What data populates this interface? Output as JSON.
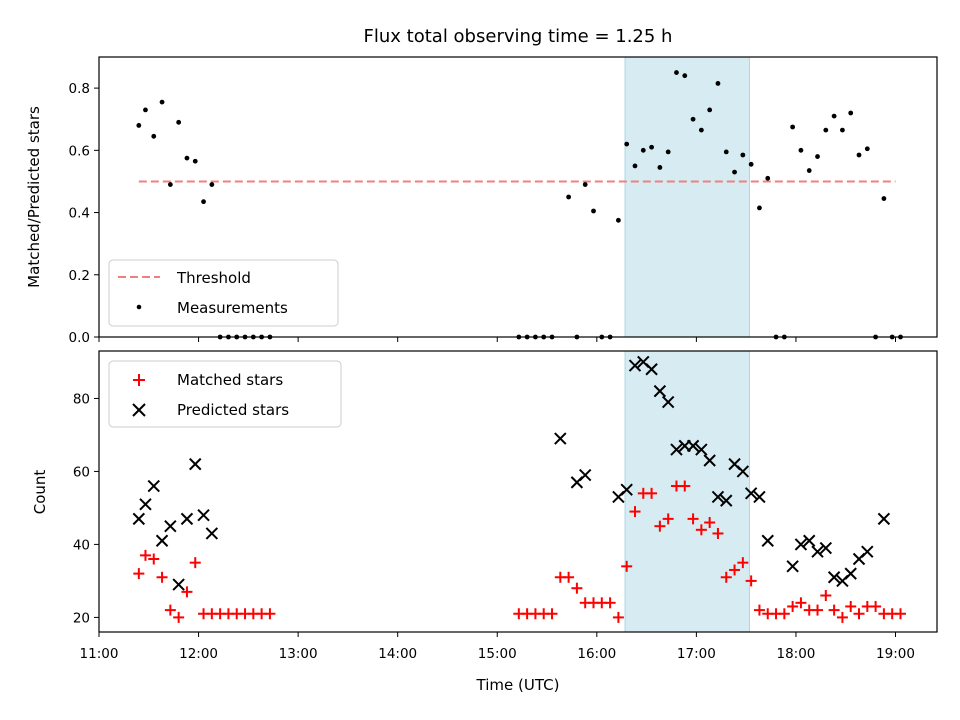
{
  "chart_data": [
    {
      "type": "scatter",
      "title": "Flux total observing time = 1.25 h",
      "xlabel": "",
      "ylabel": "Matched/Predicted stars",
      "xlim": [
        "11:00",
        "19:25"
      ],
      "ylim": [
        0,
        0.9
      ],
      "yticks": [
        "0.0",
        "0.2",
        "0.4",
        "0.6",
        "0.8"
      ],
      "highlight_span": [
        "16:17",
        "17:32"
      ],
      "legend_position": "lower-left",
      "threshold": {
        "name": "Threshold",
        "y": 0.5,
        "x_start": "11:24",
        "x_end": "19:00",
        "color": "#f08080"
      },
      "series": [
        {
          "name": "Measurements",
          "color": "#000000",
          "points": [
            [
              "11:24",
              0.68
            ],
            [
              "11:28",
              0.73
            ],
            [
              "11:33",
              0.645
            ],
            [
              "11:38",
              0.755
            ],
            [
              "11:43",
              0.49
            ],
            [
              "11:48",
              0.69
            ],
            [
              "11:53",
              0.575
            ],
            [
              "11:58",
              0.565
            ],
            [
              "12:03",
              0.435
            ],
            [
              "12:08",
              0.49
            ],
            [
              "12:13",
              0.0
            ],
            [
              "12:18",
              0.0
            ],
            [
              "12:23",
              0.0
            ],
            [
              "12:28",
              0.0
            ],
            [
              "12:33",
              0.0
            ],
            [
              "12:38",
              0.0
            ],
            [
              "12:43",
              0.0
            ],
            [
              "15:13",
              0.0
            ],
            [
              "15:18",
              0.0
            ],
            [
              "15:23",
              0.0
            ],
            [
              "15:28",
              0.0
            ],
            [
              "15:33",
              0.0
            ],
            [
              "15:43",
              0.45
            ],
            [
              "15:48",
              0.0
            ],
            [
              "15:53",
              0.49
            ],
            [
              "15:58",
              0.405
            ],
            [
              "16:03",
              0.0
            ],
            [
              "16:08",
              0.0
            ],
            [
              "16:13",
              0.375
            ],
            [
              "16:18",
              0.62
            ],
            [
              "16:23",
              0.55
            ],
            [
              "16:28",
              0.6
            ],
            [
              "16:33",
              0.61
            ],
            [
              "16:38",
              0.545
            ],
            [
              "16:43",
              0.595
            ],
            [
              "16:48",
              0.85
            ],
            [
              "16:53",
              0.84
            ],
            [
              "16:58",
              0.7
            ],
            [
              "17:03",
              0.665
            ],
            [
              "17:08",
              0.73
            ],
            [
              "17:13",
              0.815
            ],
            [
              "17:18",
              0.595
            ],
            [
              "17:23",
              0.53
            ],
            [
              "17:28",
              0.585
            ],
            [
              "17:33",
              0.555
            ],
            [
              "17:38",
              0.415
            ],
            [
              "17:43",
              0.51
            ],
            [
              "17:48",
              0.0
            ],
            [
              "17:53",
              0.0
            ],
            [
              "17:58",
              0.675
            ],
            [
              "18:03",
              0.6
            ],
            [
              "18:08",
              0.535
            ],
            [
              "18:13",
              0.58
            ],
            [
              "18:18",
              0.665
            ],
            [
              "18:23",
              0.71
            ],
            [
              "18:28",
              0.665
            ],
            [
              "18:33",
              0.72
            ],
            [
              "18:38",
              0.585
            ],
            [
              "18:43",
              0.605
            ],
            [
              "18:48",
              0.0
            ],
            [
              "18:53",
              0.445
            ],
            [
              "18:58",
              0.0
            ],
            [
              "19:03",
              0.0
            ]
          ]
        }
      ]
    },
    {
      "type": "scatter",
      "title": "",
      "xlabel": "Time (UTC)",
      "ylabel": "Count",
      "xlim": [
        "11:00",
        "19:25"
      ],
      "ylim": [
        16,
        93
      ],
      "yticks": [
        "20",
        "40",
        "60",
        "80"
      ],
      "xticks": [
        "11:00",
        "12:00",
        "13:00",
        "14:00",
        "15:00",
        "16:00",
        "17:00",
        "18:00",
        "19:00"
      ],
      "highlight_span": [
        "16:17",
        "17:32"
      ],
      "legend_position": "upper-left",
      "series": [
        {
          "name": "Matched stars",
          "marker": "plus",
          "color": "#ff0000",
          "points": [
            [
              "11:24",
              32
            ],
            [
              "11:28",
              37
            ],
            [
              "11:33",
              36
            ],
            [
              "11:38",
              31
            ],
            [
              "11:43",
              22
            ],
            [
              "11:48",
              20
            ],
            [
              "11:53",
              27
            ],
            [
              "11:58",
              35
            ],
            [
              "12:03",
              21
            ],
            [
              "12:08",
              21
            ],
            [
              "12:13",
              21
            ],
            [
              "12:18",
              21
            ],
            [
              "12:23",
              21
            ],
            [
              "12:28",
              21
            ],
            [
              "12:33",
              21
            ],
            [
              "12:38",
              21
            ],
            [
              "12:43",
              21
            ],
            [
              "15:13",
              21
            ],
            [
              "15:18",
              21
            ],
            [
              "15:23",
              21
            ],
            [
              "15:28",
              21
            ],
            [
              "15:33",
              21
            ],
            [
              "15:38",
              31
            ],
            [
              "15:43",
              31
            ],
            [
              "15:48",
              28
            ],
            [
              "15:53",
              24
            ],
            [
              "15:58",
              24
            ],
            [
              "16:03",
              24
            ],
            [
              "16:08",
              24
            ],
            [
              "16:13",
              20
            ],
            [
              "16:18",
              34
            ],
            [
              "16:23",
              49
            ],
            [
              "16:28",
              54
            ],
            [
              "16:33",
              54
            ],
            [
              "16:38",
              45
            ],
            [
              "16:43",
              47
            ],
            [
              "16:48",
              56
            ],
            [
              "16:53",
              56
            ],
            [
              "16:58",
              47
            ],
            [
              "17:03",
              44
            ],
            [
              "17:08",
              46
            ],
            [
              "17:13",
              43
            ],
            [
              "17:18",
              31
            ],
            [
              "17:23",
              33
            ],
            [
              "17:28",
              35
            ],
            [
              "17:33",
              30
            ],
            [
              "17:38",
              22
            ],
            [
              "17:43",
              21
            ],
            [
              "17:48",
              21
            ],
            [
              "17:53",
              21
            ],
            [
              "17:58",
              23
            ],
            [
              "18:03",
              24
            ],
            [
              "18:08",
              22
            ],
            [
              "18:13",
              22
            ],
            [
              "18:18",
              26
            ],
            [
              "18:23",
              22
            ],
            [
              "18:28",
              20
            ],
            [
              "18:33",
              23
            ],
            [
              "18:38",
              21
            ],
            [
              "18:43",
              23
            ],
            [
              "18:48",
              23
            ],
            [
              "18:53",
              21
            ],
            [
              "18:58",
              21
            ],
            [
              "19:03",
              21
            ]
          ]
        },
        {
          "name": "Predicted stars",
          "marker": "x",
          "color": "#000000",
          "points": [
            [
              "11:24",
              47
            ],
            [
              "11:28",
              51
            ],
            [
              "11:33",
              56
            ],
            [
              "11:38",
              41
            ],
            [
              "11:43",
              45
            ],
            [
              "11:48",
              29
            ],
            [
              "11:53",
              47
            ],
            [
              "11:58",
              62
            ],
            [
              "12:03",
              48
            ],
            [
              "12:08",
              43
            ],
            [
              "15:38",
              69
            ],
            [
              "15:48",
              57
            ],
            [
              "15:53",
              59
            ],
            [
              "16:13",
              53
            ],
            [
              "16:18",
              55
            ],
            [
              "16:23",
              89
            ],
            [
              "16:28",
              90
            ],
            [
              "16:33",
              88
            ],
            [
              "16:38",
              82
            ],
            [
              "16:43",
              79
            ],
            [
              "16:48",
              66
            ],
            [
              "16:53",
              67
            ],
            [
              "16:58",
              67
            ],
            [
              "17:03",
              66
            ],
            [
              "17:08",
              63
            ],
            [
              "17:13",
              53
            ],
            [
              "17:18",
              52
            ],
            [
              "17:23",
              62
            ],
            [
              "17:28",
              60
            ],
            [
              "17:33",
              54
            ],
            [
              "17:38",
              53
            ],
            [
              "17:43",
              41
            ],
            [
              "17:58",
              34
            ],
            [
              "18:03",
              40
            ],
            [
              "18:08",
              41
            ],
            [
              "18:13",
              38
            ],
            [
              "18:18",
              39
            ],
            [
              "18:23",
              31
            ],
            [
              "18:28",
              30
            ],
            [
              "18:33",
              32
            ],
            [
              "18:38",
              36
            ],
            [
              "18:43",
              38
            ],
            [
              "18:53",
              47
            ]
          ]
        }
      ]
    }
  ]
}
